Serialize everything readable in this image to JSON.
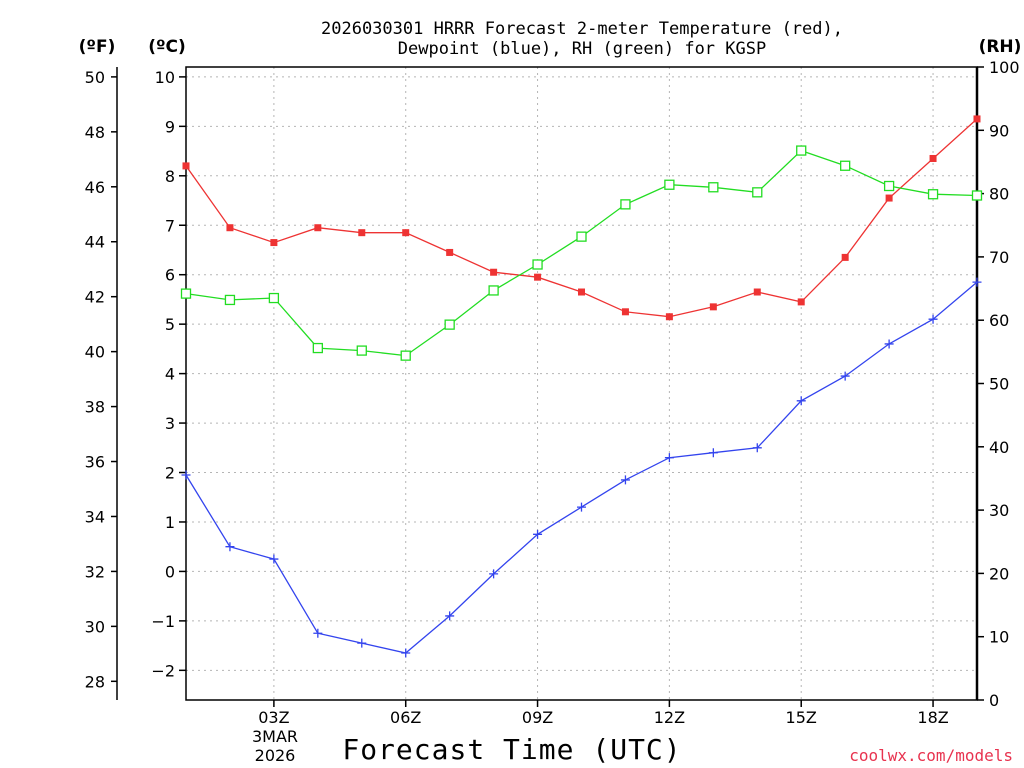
{
  "chart_data": {
    "type": "line",
    "title": [
      "2026030301 HRRR Forecast 2-meter Temperature (red),",
      "Dewpoint (blue), RH (green) for KGSP"
    ],
    "xlabel": "Forecast Time (UTC)",
    "x_ticks": [
      {
        "hour": 3,
        "label": "03Z"
      },
      {
        "hour": 6,
        "label": "06Z"
      },
      {
        "hour": 9,
        "label": "09Z"
      },
      {
        "hour": 12,
        "label": "12Z"
      },
      {
        "hour": 15,
        "label": "15Z"
      },
      {
        "hour": 18,
        "label": "18Z"
      }
    ],
    "date_label": [
      "3MAR",
      "2026"
    ],
    "xlim": [
      1,
      19
    ],
    "y_left_celsius": {
      "unit_label": "(ºC)",
      "range": [
        -2.6,
        10.2
      ],
      "ticks": [
        -2,
        -1,
        0,
        1,
        2,
        3,
        4,
        5,
        6,
        7,
        8,
        9,
        10
      ]
    },
    "y_left_fahrenheit": {
      "unit_label": "(ºF)",
      "ticks": [
        28,
        30,
        32,
        34,
        36,
        38,
        40,
        42,
        44,
        46,
        48,
        50
      ]
    },
    "y_right_rh": {
      "unit_label": "(RH)",
      "range": [
        0,
        100
      ],
      "ticks": [
        0,
        10,
        20,
        30,
        40,
        50,
        60,
        70,
        80,
        90,
        100
      ]
    },
    "series": [
      {
        "name": "Temperature",
        "axis": "celsius",
        "color": "#ee3333",
        "marker": "filled-square",
        "x": [
          1,
          2,
          3,
          4,
          5,
          6,
          7,
          8,
          9,
          10,
          11,
          12,
          13,
          14,
          15,
          16,
          17,
          18,
          19
        ],
        "values": [
          8.2,
          6.95,
          6.65,
          6.95,
          6.85,
          6.85,
          6.45,
          6.05,
          5.95,
          5.65,
          5.25,
          5.15,
          5.35,
          5.65,
          5.45,
          6.35,
          7.55,
          8.35,
          9.15
        ]
      },
      {
        "name": "Dewpoint",
        "axis": "celsius",
        "color": "#3344ee",
        "marker": "plus",
        "x": [
          1,
          2,
          3,
          4,
          5,
          6,
          7,
          8,
          9,
          10,
          11,
          12,
          13,
          14,
          15,
          16,
          17,
          18,
          19
        ],
        "values": [
          1.95,
          0.5,
          0.25,
          -1.25,
          -1.45,
          -1.65,
          -0.9,
          -0.05,
          0.75,
          1.3,
          1.85,
          2.3,
          2.4,
          2.5,
          3.45,
          3.95,
          4.6,
          5.1,
          5.85
        ]
      },
      {
        "name": "RH",
        "axis": "rh",
        "color": "#22dd22",
        "marker": "open-square",
        "x": [
          1,
          2,
          3,
          4,
          5,
          6,
          7,
          8,
          9,
          10,
          11,
          12,
          13,
          14,
          15,
          16,
          17,
          18,
          19
        ],
        "values": [
          64.2,
          63.2,
          63.5,
          55.6,
          55.2,
          54.4,
          59.3,
          64.7,
          68.8,
          73.2,
          78.3,
          81.4,
          81.0,
          80.2,
          86.8,
          84.4,
          81.2,
          79.9,
          79.7
        ]
      }
    ]
  },
  "credit": {
    "text": "coolwx.com/models",
    "color": "#e8334f"
  }
}
